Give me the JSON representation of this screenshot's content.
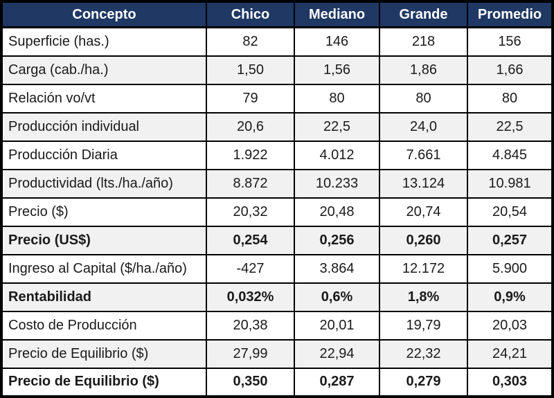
{
  "table": {
    "columns": [
      "Concepto",
      "Chico",
      "Mediano",
      "Grande",
      "Promedio"
    ],
    "rows": [
      {
        "label": "Superficie (has.)",
        "values": [
          "82",
          "146",
          "218",
          "156"
        ],
        "bold": false
      },
      {
        "label": "Carga (cab./ha.)",
        "values": [
          "1,50",
          "1,56",
          "1,86",
          "1,66"
        ],
        "bold": false
      },
      {
        "label": "Relación vo/vt",
        "values": [
          "79",
          "80",
          "80",
          "80"
        ],
        "bold": false
      },
      {
        "label": "Producción individual",
        "values": [
          "20,6",
          "22,5",
          "24,0",
          "22,5"
        ],
        "bold": false
      },
      {
        "label": "Producción Diaria",
        "values": [
          "1.922",
          "4.012",
          "7.661",
          "4.845"
        ],
        "bold": false
      },
      {
        "label": "Productividad (lts./ha./año)",
        "values": [
          "8.872",
          "10.233",
          "13.124",
          "10.981"
        ],
        "bold": false
      },
      {
        "label": "Precio ($)",
        "values": [
          "20,32",
          "20,48",
          "20,74",
          "20,54"
        ],
        "bold": false
      },
      {
        "label": "Precio (US$)",
        "values": [
          "0,254",
          "0,256",
          "0,260",
          "0,257"
        ],
        "bold": true
      },
      {
        "label": "Ingreso al Capital ($/ha./año)",
        "values": [
          "-427",
          "3.864",
          "12.172",
          "5.900"
        ],
        "bold": false
      },
      {
        "label": "Rentabilidad",
        "values": [
          "0,032%",
          "0,6%",
          "1,8%",
          "0,9%"
        ],
        "bold": true
      },
      {
        "label": "Costo de Producción",
        "values": [
          "20,38",
          "20,01",
          "19,79",
          "20,03"
        ],
        "bold": false
      },
      {
        "label": "Precio de Equilibrio ($)",
        "values": [
          "27,99",
          "22,94",
          "22,32",
          "24,21"
        ],
        "bold": false
      },
      {
        "label": "Precio de Equilibrio ($)",
        "values": [
          "0,350",
          "0,287",
          "0,279",
          "0,303"
        ],
        "bold": true
      }
    ],
    "colors": {
      "header_bg": "#1F3864",
      "header_text": "#FFFFFF",
      "row_bg": "#FFFFFF",
      "row_alt_bg": "#F1F1F1",
      "border": "#000000"
    }
  },
  "chart_data": {
    "type": "table",
    "title": "",
    "columns": [
      "Concepto",
      "Chico",
      "Mediano",
      "Grande",
      "Promedio"
    ],
    "rows": [
      [
        "Superficie (has.)",
        "82",
        "146",
        "218",
        "156"
      ],
      [
        "Carga (cab./ha.)",
        "1,50",
        "1,56",
        "1,86",
        "1,66"
      ],
      [
        "Relación vo/vt",
        "79",
        "80",
        "80",
        "80"
      ],
      [
        "Producción individual",
        "20,6",
        "22,5",
        "24,0",
        "22,5"
      ],
      [
        "Producción Diaria",
        "1.922",
        "4.012",
        "7.661",
        "4.845"
      ],
      [
        "Productividad (lts./ha./año)",
        "8.872",
        "10.233",
        "13.124",
        "10.981"
      ],
      [
        "Precio ($)",
        "20,32",
        "20,48",
        "20,74",
        "20,54"
      ],
      [
        "Precio (US$)",
        "0,254",
        "0,256",
        "0,260",
        "0,257"
      ],
      [
        "Ingreso al Capital ($/ha./año)",
        "-427",
        "3.864",
        "12.172",
        "5.900"
      ],
      [
        "Rentabilidad",
        "0,032%",
        "0,6%",
        "1,8%",
        "0,9%"
      ],
      [
        "Costo de Producción",
        "20,38",
        "20,01",
        "19,79",
        "20,03"
      ],
      [
        "Precio de Equilibrio ($)",
        "27,99",
        "22,94",
        "22,32",
        "24,21"
      ],
      [
        "Precio de Equilibrio ($)",
        "0,350",
        "0,287",
        "0,279",
        "0,303"
      ]
    ]
  }
}
